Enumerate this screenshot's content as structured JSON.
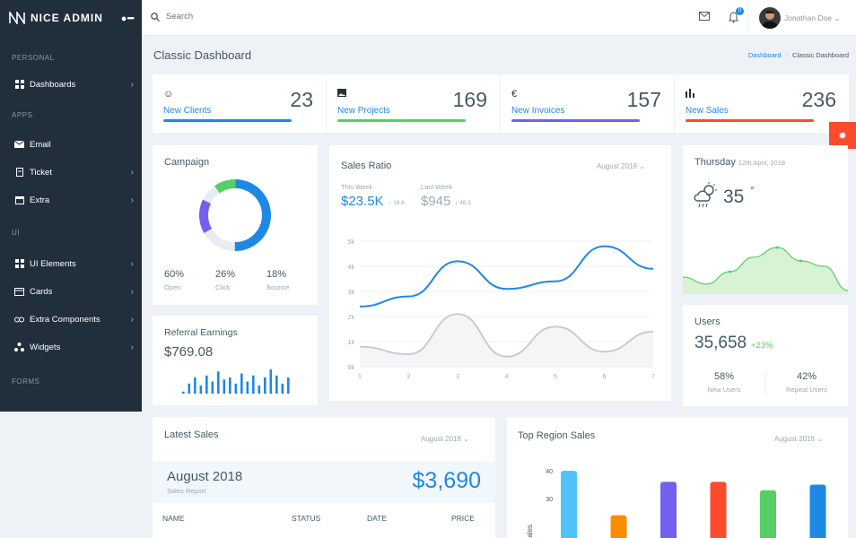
{
  "brand": {
    "name": "NICE ADMIN"
  },
  "sidebar": {
    "sections": [
      "PERSONAL",
      "APPS",
      "UI",
      "FORMS"
    ],
    "items": [
      {
        "label": "Dashboards",
        "icon": "dashboard-icon",
        "has_children": true
      },
      {
        "label": "Email",
        "icon": "email-icon",
        "has_children": false
      },
      {
        "label": "Ticket",
        "icon": "ticket-icon",
        "has_children": true
      },
      {
        "label": "Extra",
        "icon": "calendar-icon",
        "has_children": true
      },
      {
        "label": "UI Elements",
        "icon": "grid-icon",
        "has_children": true
      },
      {
        "label": "Cards",
        "icon": "cards-icon",
        "has_children": true
      },
      {
        "label": "Extra Components",
        "icon": "components-icon",
        "has_children": true
      },
      {
        "label": "Widgets",
        "icon": "widgets-icon",
        "has_children": true
      }
    ]
  },
  "topbar": {
    "search_placeholder": "Search",
    "notification_count": "0",
    "user_name": "Jonathan Doe"
  },
  "page": {
    "title": "Classic Dashboard",
    "breadcrumb": [
      "Dashboard",
      "Classic Dashboard"
    ]
  },
  "stats": [
    {
      "label": "New Clients",
      "value": "23",
      "icon": "smile-icon",
      "color": "#1e88e5",
      "progress": 0.85
    },
    {
      "label": "New Projects",
      "value": "169",
      "icon": "image-icon",
      "color": "#26c6da",
      "progress": 0.85
    },
    {
      "label": "New Invoices",
      "value": "157",
      "icon": "euro-icon",
      "color": "#7460ee",
      "progress": 0.85
    },
    {
      "label": "New Sales",
      "value": "236",
      "icon": "bars-icon",
      "color": "#fc4b6c",
      "progress": 0.85
    }
  ],
  "colors": {
    "blue": "#1e88e5",
    "green": "#55ce63",
    "purple": "#7460ee",
    "red": "#fc4b2c",
    "orange": "#fb8c00",
    "teal": "#4fc3f7",
    "gray": "#e9edf2"
  },
  "campaign": {
    "title": "Campaign",
    "segments": [
      {
        "label": "Open",
        "value": "60%",
        "pct": 60,
        "color": "#1e88e5"
      },
      {
        "label": "Click",
        "value": "26%",
        "pct": 26,
        "color": "#e9edf2"
      },
      {
        "label": "Bounce",
        "value": "18%",
        "pct": 18,
        "color": "#7460ee"
      }
    ],
    "extra_segment_color": "#55ce63"
  },
  "referral": {
    "title": "Referral Earnings",
    "value": "$769.08",
    "bars": [
      1,
      5,
      8,
      4,
      9,
      6,
      11,
      7,
      8,
      5,
      10,
      6,
      9,
      4,
      8,
      12,
      9,
      5,
      8
    ]
  },
  "sales_ratio": {
    "title": "Sales Ratio",
    "period": "August 2018",
    "this_week_label": "This Week",
    "this_week_value": "$23.5K",
    "this_week_change": "18.6",
    "last_week_label": "Last Week",
    "last_week_value": "$945",
    "last_week_change": "46.3"
  },
  "chart_data": {
    "type": "line",
    "x": [
      1,
      2,
      3,
      4,
      5,
      6,
      7
    ],
    "yticks": [
      "0k",
      "1k",
      "2k",
      "3k",
      "4k",
      "5k"
    ],
    "ylim": [
      0,
      5000
    ],
    "series": [
      {
        "values": [
          2400,
          2800,
          4200,
          3100,
          3400,
          4800,
          3900
        ],
        "color": "#1e88e5"
      },
      {
        "values": [
          800,
          500,
          2100,
          400,
          1600,
          600,
          1400
        ],
        "color": "#c7ccd1"
      }
    ]
  },
  "weather": {
    "day": "Thursday",
    "date": "12th April, 2018",
    "temp": "35",
    "unit": "°",
    "icon": "cloud-sun-rain-icon",
    "trend": [
      0.25,
      0.12,
      0.35,
      0.62,
      0.8,
      0.55,
      0.45,
      0.0
    ]
  },
  "users": {
    "title": "Users",
    "count": "35,658",
    "change": "+23%",
    "new_pct": "58%",
    "new_label": "New Users",
    "repeat_pct": "42%",
    "repeat_label": "Repeat Users"
  },
  "latest_sales": {
    "title": "Latest Sales",
    "period": "August 2018",
    "month": "August 2018",
    "sub": "Sales Report",
    "amount": "$3,690",
    "columns": [
      "NAME",
      "STATUS",
      "DATE",
      "PRICE"
    ]
  },
  "top_region": {
    "title": "Top Region Sales",
    "period": "August 2018",
    "ylabel": "Sales",
    "yticks": [
      "40",
      "30"
    ],
    "bars": [
      {
        "value": 40,
        "color": "#4fc3f7"
      },
      {
        "value": 24,
        "color": "#fb8c00"
      },
      {
        "value": 36,
        "color": "#7460ee"
      },
      {
        "value": 36,
        "color": "#fc4b2c"
      },
      {
        "value": 33,
        "color": "#55ce63"
      },
      {
        "value": 35,
        "color": "#1e88e5"
      }
    ]
  }
}
